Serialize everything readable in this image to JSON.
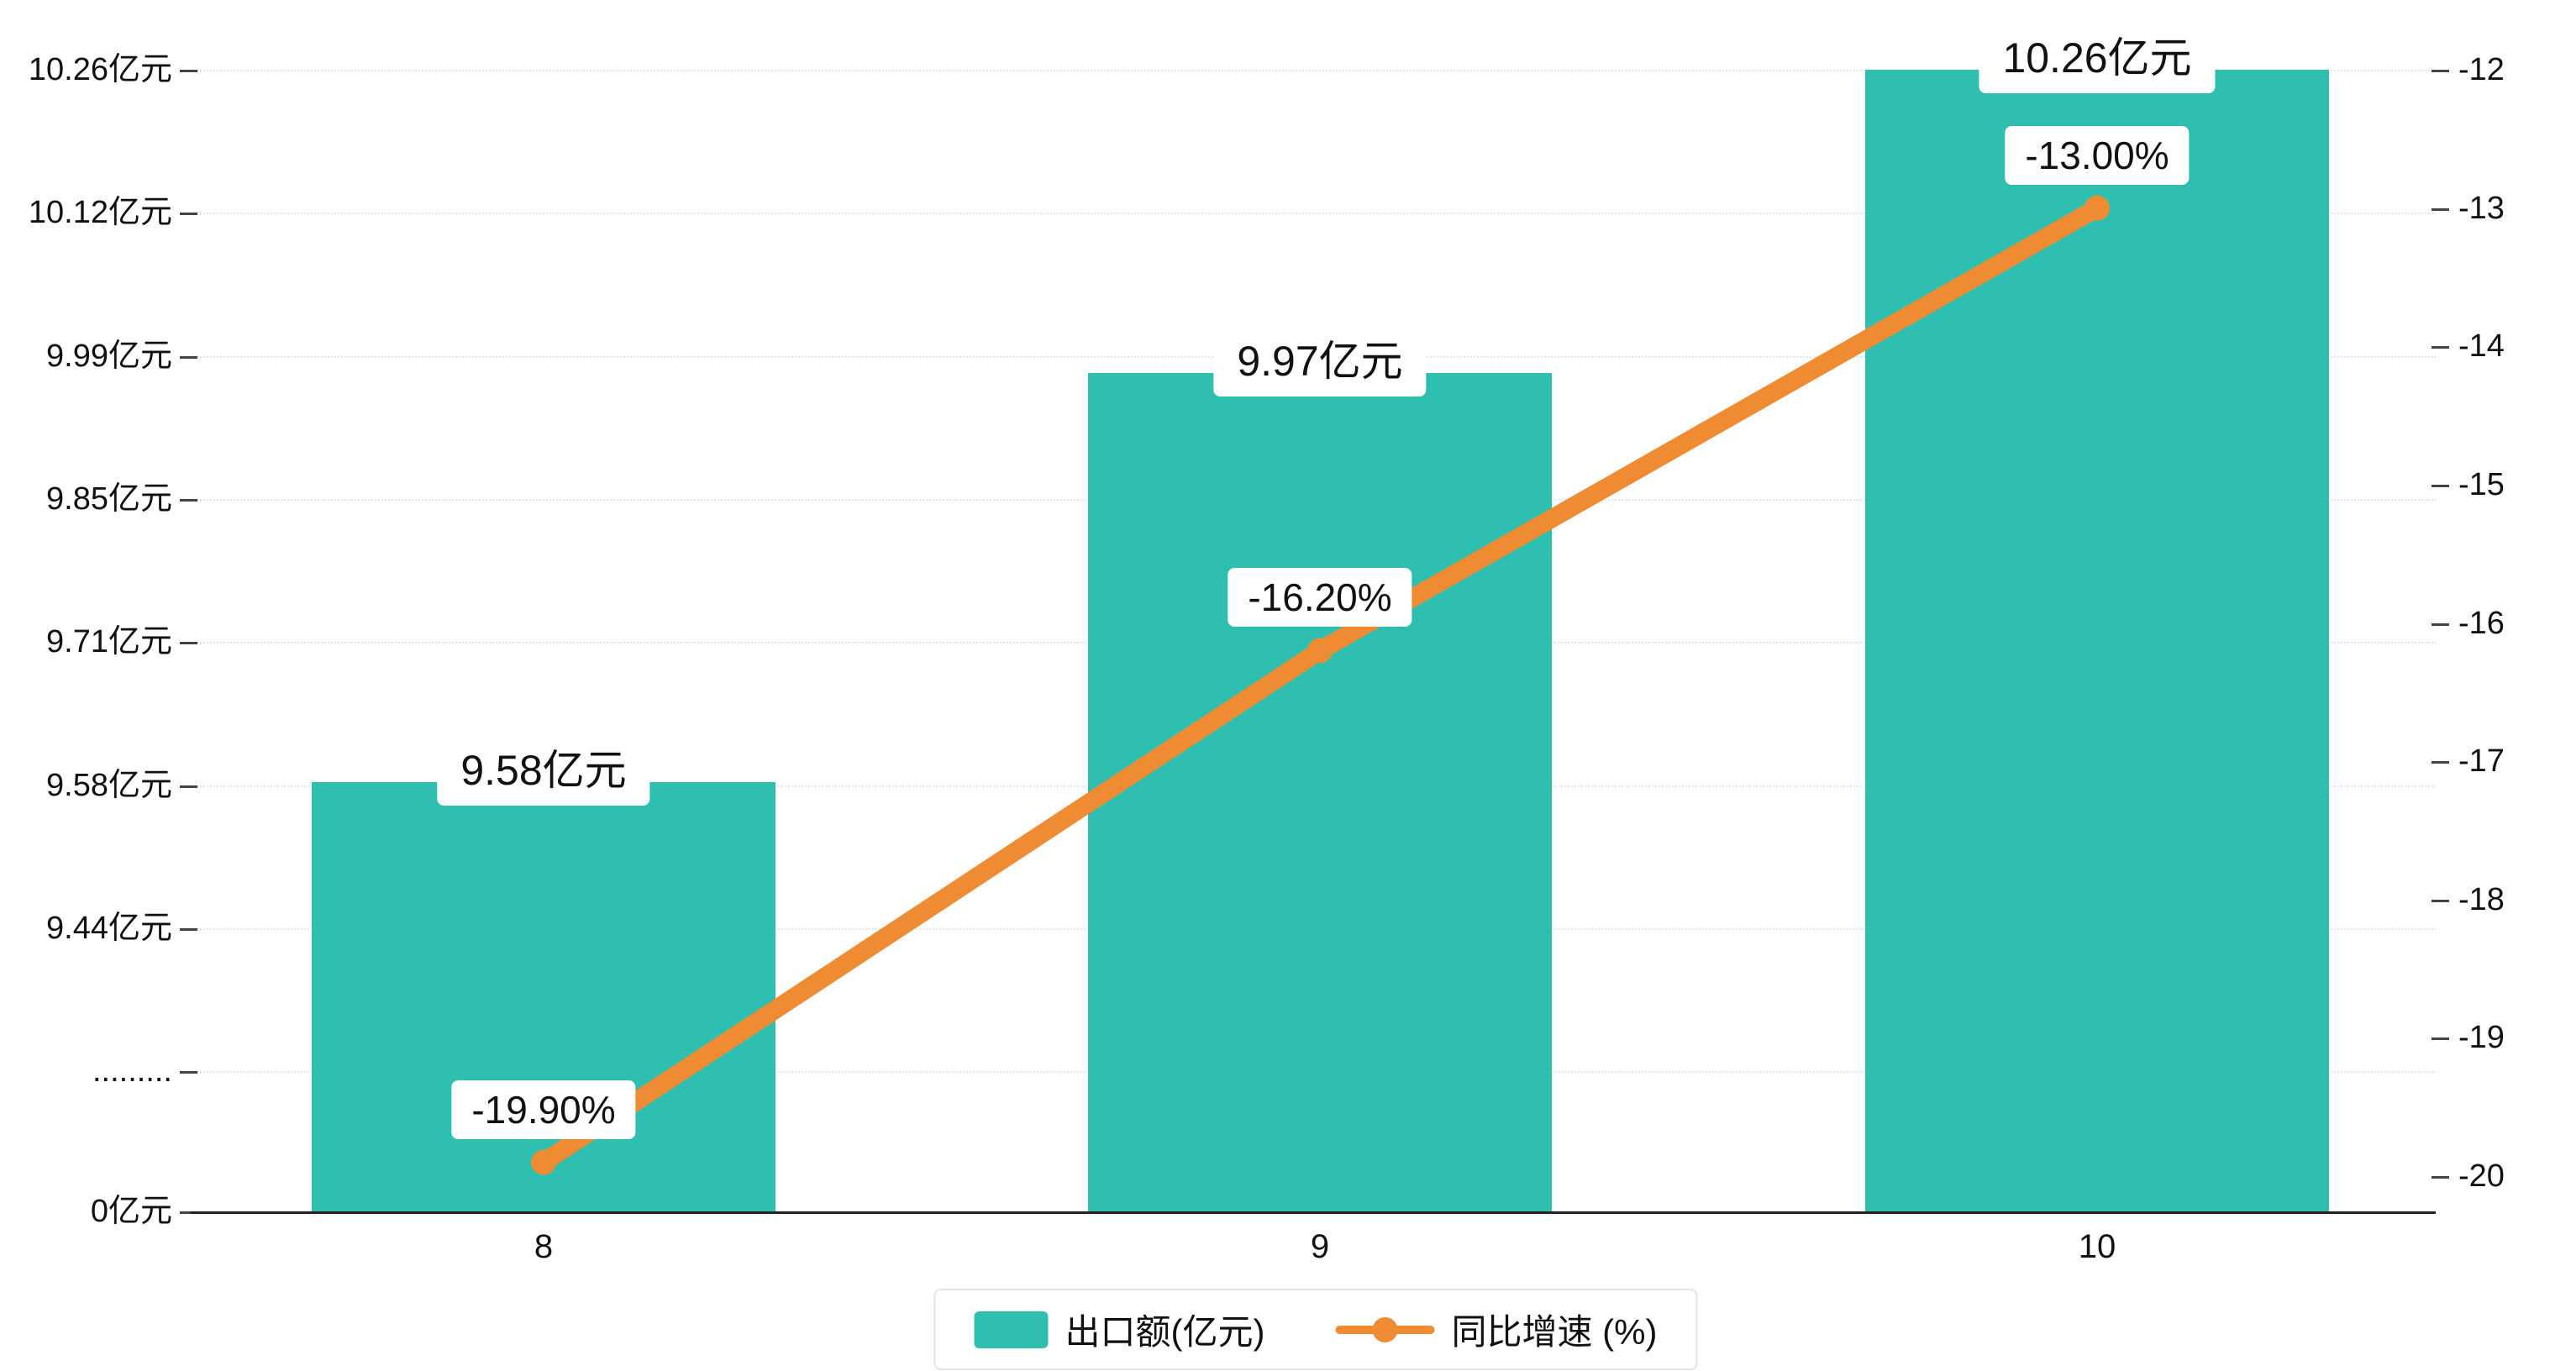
{
  "chart_data": {
    "type": "bar",
    "subtype": "bar+line combo, dual y-axis, broken left axis",
    "title": "",
    "categories": [
      "8",
      "9",
      "10"
    ],
    "series": [
      {
        "name": "出口额(亿元)",
        "type": "bar",
        "axis": "left",
        "color": "#2FBFB0",
        "values": [
          9.58,
          9.97,
          10.26
        ],
        "data_labels": [
          "9.58亿元",
          "9.97亿元",
          "10.26亿元"
        ]
      },
      {
        "name": "同比增速 (%)",
        "type": "line",
        "axis": "right",
        "color": "#EF8B33",
        "values": [
          -19.9,
          -16.2,
          -13.0
        ],
        "data_labels": [
          "-19.90%",
          "-16.20%",
          "-13.00%"
        ]
      }
    ],
    "left_axis": {
      "unit": "亿元",
      "axis_top_value": 10.26,
      "tick_labels": [
        "10.26亿元",
        "10.12亿元",
        "9.99亿元",
        "9.85亿元",
        "9.71亿元",
        "9.58亿元",
        "9.44亿元",
        ".........",
        "0亿元"
      ],
      "broken_axis": true
    },
    "right_axis": {
      "unit": "%",
      "range": [
        -20,
        -12
      ],
      "tick_labels": [
        "-12",
        "-13",
        "-14",
        "-15",
        "-16",
        "-17",
        "-18",
        "-19",
        "-20"
      ]
    },
    "grid": "horizontal-dotted",
    "legend": {
      "position": "bottom-center",
      "items": [
        {
          "label": "出口额(亿元)",
          "marker": "bar-swatch",
          "color": "#2FBFB0"
        },
        {
          "label": "同比增速 (%)",
          "marker": "line-dot",
          "color": "#EF8B33"
        }
      ]
    }
  },
  "colors": {
    "bar": "#2FBFB0",
    "line": "#EF8B33",
    "axis": "#222222",
    "tick": "#444444",
    "grid": "#e7e7e7",
    "label_bg": "#ffffff",
    "text": "#111111"
  }
}
